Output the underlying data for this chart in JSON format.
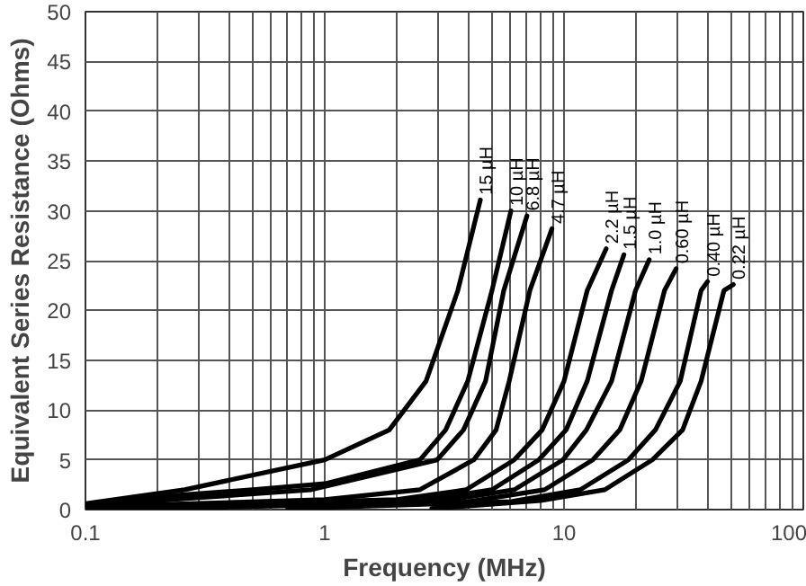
{
  "chart_data": {
    "type": "line",
    "xlabel": "Frequency (MHz)",
    "ylabel": "Equivalent Series Resistance (Ohms)",
    "log": "x",
    "grid": true,
    "marker": "none",
    "line_style": "solid",
    "xlim": [
      0.1,
      100
    ],
    "ylim": [
      0,
      50
    ],
    "xticks": [
      0.1,
      {
        "value": 0.2,
        "label": null
      },
      {
        "value": 0.3,
        "label": null
      },
      {
        "value": 0.4,
        "label": null
      },
      {
        "value": 0.5,
        "label": null
      },
      {
        "value": 0.6,
        "label": null
      },
      {
        "value": 0.7,
        "label": null
      },
      {
        "value": 0.8,
        "label": null
      },
      {
        "value": 0.9,
        "label": null
      },
      1,
      {
        "value": 2,
        "label": null
      },
      {
        "value": 3,
        "label": null
      },
      {
        "value": 4,
        "label": null
      },
      {
        "value": 5,
        "label": null
      },
      {
        "value": 6,
        "label": null
      },
      {
        "value": 7,
        "label": null
      },
      {
        "value": 8,
        "label": null
      },
      {
        "value": 9,
        "label": null
      },
      10,
      {
        "value": 20,
        "label": null
      },
      {
        "value": 30,
        "label": null
      },
      {
        "value": 40,
        "label": null
      },
      {
        "value": 50,
        "label": null
      },
      {
        "value": 60,
        "label": null
      },
      {
        "value": 70,
        "label": null
      },
      {
        "value": 80,
        "label": null
      },
      {
        "value": 90,
        "label": null
      },
      100
    ],
    "yticks": [
      0,
      5,
      10,
      15,
      20,
      25,
      30,
      35,
      40,
      45,
      50
    ],
    "series": [
      {
        "name": "15 µH",
        "color": "#000000",
        "x": [
          0.1,
          0.26,
          1.0,
          1.86,
          2.65,
          3.6,
          4.47
        ],
        "values": [
          0.6,
          2,
          5,
          8,
          12.9,
          22,
          31.1
        ]
      },
      {
        "name": "10 µH",
        "color": "#000000",
        "x": [
          0.1,
          0.2,
          0.5,
          1.0,
          2.5,
          3.2,
          3.96,
          5.0,
          6.0
        ],
        "values": [
          0.5,
          1.3,
          2,
          2.6,
          5,
          8,
          12.9,
          22,
          30
        ]
      },
      {
        "name": "6.8 µH",
        "color": "#000000",
        "x": [
          0.1,
          0.3,
          0.88,
          2.95,
          3.8,
          4.7,
          5.6,
          7.0
        ],
        "values": [
          0.4,
          1.2,
          2,
          5,
          8,
          12.9,
          22,
          29.5
        ]
      },
      {
        "name": "4.7 µH",
        "color": "#000000",
        "x": [
          0.1,
          1.0,
          2.5,
          4.2,
          5.2,
          5.9,
          7.2,
          8.9
        ],
        "values": [
          0.3,
          1.0,
          2,
          5,
          8,
          12.9,
          22,
          28.2
        ]
      },
      {
        "name": "2.2 µH",
        "color": "#000000",
        "x": [
          0.1,
          2.0,
          3.9,
          6.2,
          8.1,
          10,
          12.5,
          15
        ],
        "values": [
          0.2,
          1.0,
          2,
          5,
          8,
          12.9,
          22,
          26.2
        ]
      },
      {
        "name": "1.5 µH",
        "color": "#000000",
        "x": [
          0.1,
          2.5,
          5.0,
          7.85,
          10.2,
          12.5,
          15.8,
          17.8
        ],
        "values": [
          0.1,
          0.9,
          2,
          5,
          8,
          12.9,
          22,
          25.6
        ]
      },
      {
        "name": "1.0 µH",
        "color": "#000000",
        "x": [
          0.1,
          3.0,
          6.2,
          9.9,
          12.4,
          15.8,
          19.9,
          22.7
        ],
        "values": [
          0.1,
          0.8,
          2,
          5,
          8,
          12.9,
          22,
          25.1
        ]
      },
      {
        "name": "0.60 µH",
        "color": "#000000",
        "x": [
          0.2,
          4.0,
          8.3,
          13.2,
          17.1,
          21,
          26.3,
          29.4
        ],
        "values": [
          0.1,
          0.8,
          2,
          5,
          8,
          12.9,
          22,
          24.2
        ]
      },
      {
        "name": "0.40 µH",
        "color": "#000000",
        "x": [
          0.7,
          6.0,
          11.7,
          18.6,
          24.1,
          30.6,
          37.4,
          39.8
        ],
        "values": [
          0.1,
          0.8,
          2,
          5,
          8,
          12.9,
          22,
          22.9
        ]
      },
      {
        "name": "0.22 µH",
        "color": "#000000",
        "x": [
          2.8,
          8.0,
          14.8,
          23.4,
          31.3,
          37.4,
          46.6,
          51
        ],
        "values": [
          0.1,
          0.9,
          2,
          5,
          8,
          12.9,
          22,
          22.6
        ]
      }
    ]
  }
}
